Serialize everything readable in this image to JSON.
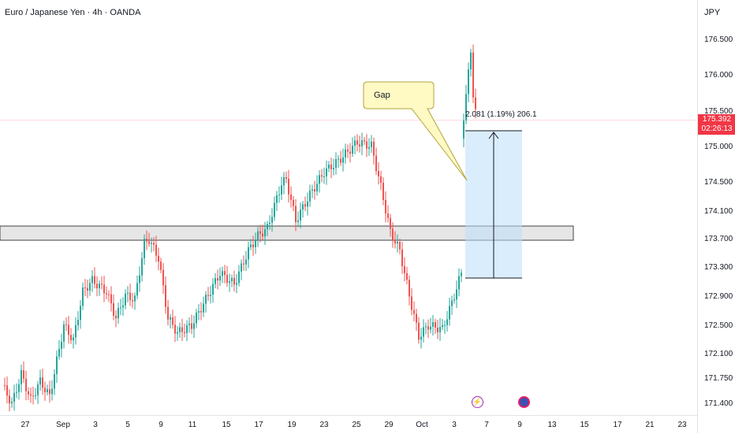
{
  "header": {
    "symbol_title": "Euro / Japanese Yen · 4h · OANDA",
    "currency": "JPY"
  },
  "price_axis": {
    "ticks": [
      "176.500",
      "176.000",
      "175.500",
      "175.000",
      "174.500",
      "174.100",
      "173.700",
      "173.300",
      "172.900",
      "172.500",
      "172.100",
      "171.750",
      "171.400"
    ],
    "last_price": "175.392",
    "countdown": "02:26:13"
  },
  "time_axis": {
    "labels": [
      "27",
      "Sep",
      "3",
      "5",
      "9",
      "11",
      "15",
      "17",
      "19",
      "23",
      "25",
      "29",
      "Oct",
      "3",
      "7",
      "9",
      "13",
      "15",
      "17",
      "21",
      "23"
    ]
  },
  "annotations": {
    "gap_label": "Gap",
    "measure_label": "2.081 (1.19%) 206.1"
  },
  "icons": {
    "event_1": "lightning-icon",
    "event_2": "flag-icon"
  },
  "colors": {
    "up": "#26a69a",
    "down": "#ef5350",
    "price_tag": "#f23645",
    "measure_fill": "#dbeafe",
    "gap_callout": "#fff9c4"
  },
  "chart_data": {
    "type": "candlestick",
    "title": "Euro / Japanese Yen · 4h · OANDA",
    "ylim": [
      171.3,
      176.8
    ],
    "last_price": 175.392,
    "support_zone": [
      173.68,
      173.88
    ],
    "gap_range": [
      173.24,
      175.31
    ],
    "pivot_closes": [
      [
        0,
        171.7
      ],
      [
        4,
        171.45
      ],
      [
        8,
        171.85
      ],
      [
        12,
        171.5
      ],
      [
        16,
        171.75
      ],
      [
        20,
        171.55
      ],
      [
        26,
        172.5
      ],
      [
        30,
        172.3
      ],
      [
        34,
        172.95
      ],
      [
        38,
        173.1
      ],
      [
        44,
        172.95
      ],
      [
        48,
        172.6
      ],
      [
        52,
        172.9
      ],
      [
        56,
        172.85
      ],
      [
        60,
        173.6
      ],
      [
        62,
        173.65
      ],
      [
        66,
        173.4
      ],
      [
        70,
        172.6
      ],
      [
        74,
        172.4
      ],
      [
        80,
        172.5
      ],
      [
        86,
        172.85
      ],
      [
        92,
        173.2
      ],
      [
        98,
        173.05
      ],
      [
        104,
        173.5
      ],
      [
        108,
        173.7
      ],
      [
        112,
        173.8
      ],
      [
        118,
        174.4
      ],
      [
        120,
        174.45
      ],
      [
        124,
        173.9
      ],
      [
        130,
        174.25
      ],
      [
        136,
        174.55
      ],
      [
        142,
        174.7
      ],
      [
        150,
        174.95
      ],
      [
        156,
        174.9
      ],
      [
        160,
        174.35
      ],
      [
        164,
        173.75
      ],
      [
        168,
        173.5
      ],
      [
        172,
        172.9
      ],
      [
        176,
        172.35
      ],
      [
        180,
        172.5
      ],
      [
        186,
        172.45
      ],
      [
        190,
        172.8
      ],
      [
        194,
        173.2
      ],
      [
        195,
        175.3
      ],
      [
        198,
        176.15
      ]
    ]
  }
}
